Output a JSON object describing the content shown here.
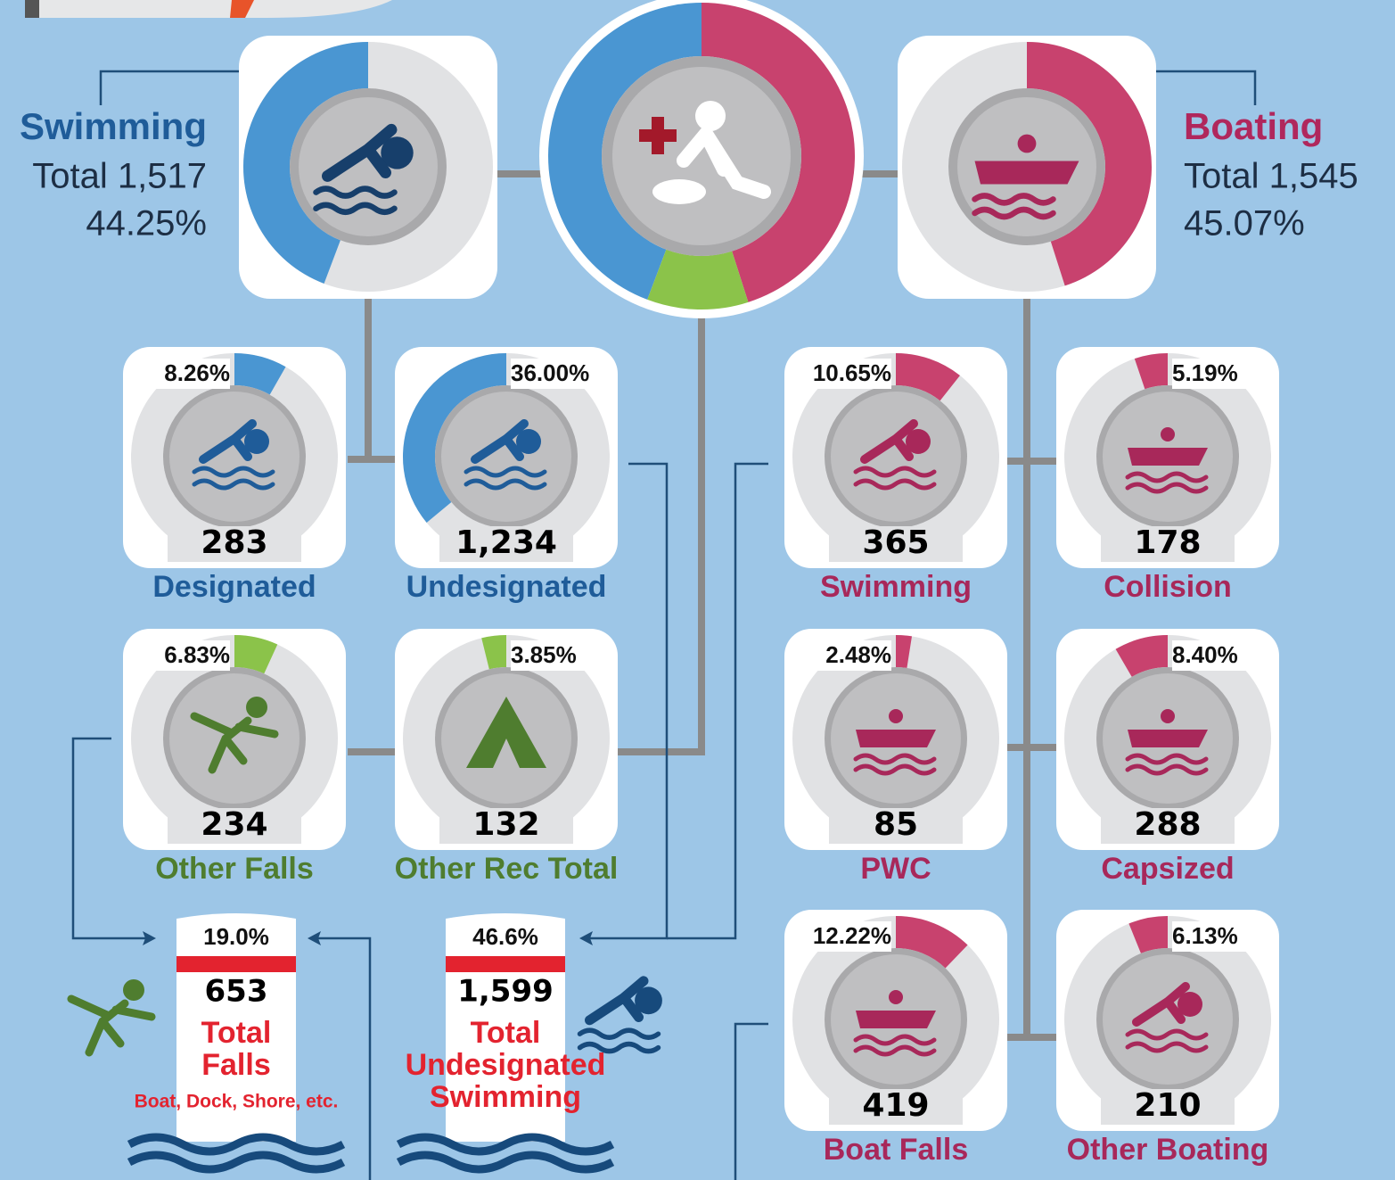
{
  "swimming": {
    "label": "Swimming",
    "total": "Total 1,517",
    "percent": 44.25,
    "percent_label": "44.25%"
  },
  "boating": {
    "label": "Boating",
    "total": "Total 1,545",
    "percent": 45.07,
    "percent_label": "45.07%"
  },
  "tiles": [
    {
      "percent": 8.26,
      "percent_label": "8.26%",
      "count": "283",
      "label": "Designated"
    },
    {
      "percent": 36.0,
      "percent_label": "36.00%",
      "count": "1,234",
      "label": "Undesignated"
    },
    {
      "percent": 10.65,
      "percent_label": "10.65%",
      "count": "365",
      "label": "Swimming"
    },
    {
      "percent": 5.19,
      "percent_label": "5.19%",
      "count": "178",
      "label": "Collision"
    },
    {
      "percent": 6.83,
      "percent_label": "6.83%",
      "count": "234",
      "label": "Other Falls"
    },
    {
      "percent": 3.85,
      "percent_label": "3.85%",
      "count": "132",
      "label": "Other Rec Total"
    },
    {
      "percent": 2.48,
      "percent_label": "2.48%",
      "count": "85",
      "label": "PWC"
    },
    {
      "percent": 8.4,
      "percent_label": "8.40%",
      "count": "288",
      "label": "Capsized"
    },
    {
      "percent": 12.22,
      "percent_label": "12.22%",
      "count": "419",
      "label": "Boat Falls"
    },
    {
      "percent": 6.13,
      "percent_label": "6.13%",
      "count": "210",
      "label": "Other Boating"
    }
  ],
  "totals": [
    {
      "percent_label": "19.0%",
      "count": "653",
      "label": [
        "Total",
        "Falls"
      ],
      "note": "Boat, Dock, Shore, etc."
    },
    {
      "percent_label": "46.6%",
      "count": "1,599",
      "label": [
        "Total",
        "Undesignated",
        "Swimming"
      ]
    }
  ]
}
